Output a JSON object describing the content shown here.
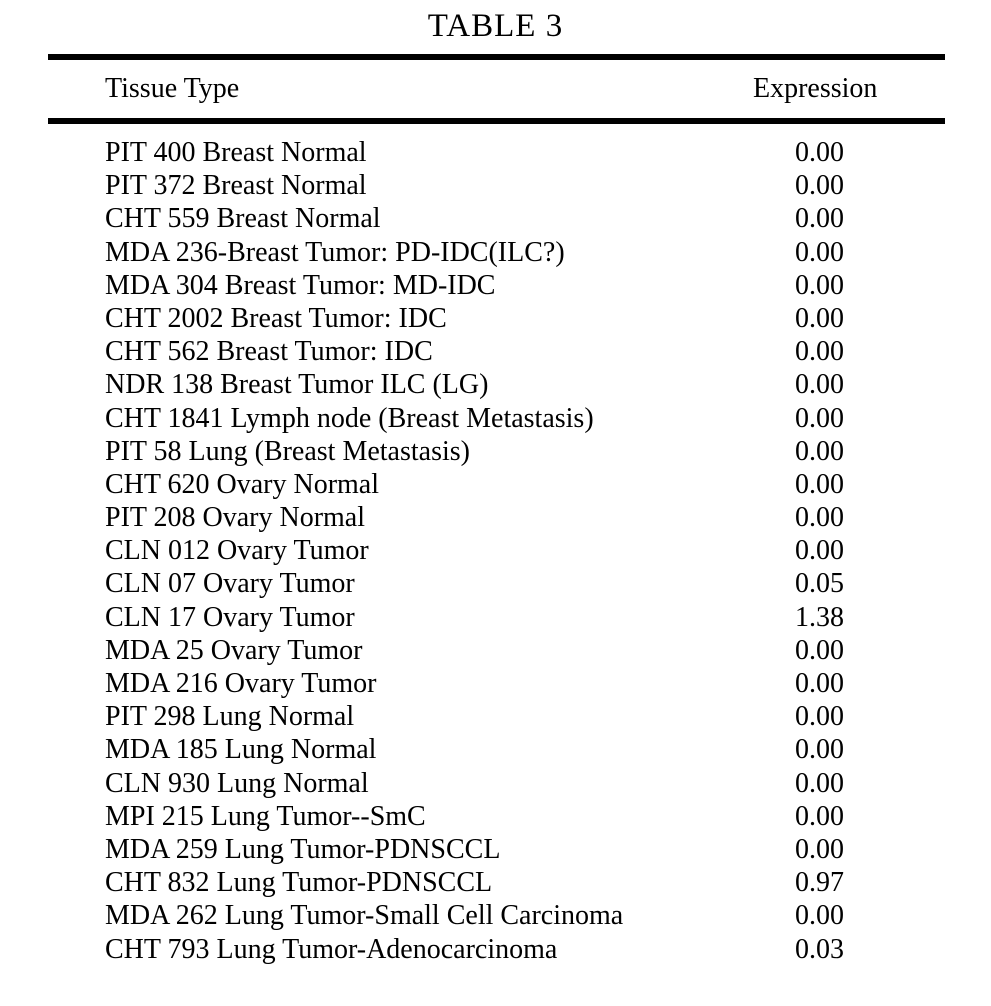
{
  "title": "TABLE 3",
  "table": {
    "columns": [
      "Tissue Type",
      "Expression"
    ],
    "rows": [
      {
        "tissue": "PIT 400 Breast Normal",
        "expression": "0.00"
      },
      {
        "tissue": "PIT 372 Breast Normal",
        "expression": "0.00"
      },
      {
        "tissue": "CHT 559 Breast Normal",
        "expression": "0.00"
      },
      {
        "tissue": "MDA 236-Breast Tumor: PD-IDC(ILC?)",
        "expression": "0.00"
      },
      {
        "tissue": "MDA 304 Breast Tumor: MD-IDC",
        "expression": "0.00"
      },
      {
        "tissue": "CHT 2002 Breast Tumor: IDC",
        "expression": "0.00"
      },
      {
        "tissue": "CHT 562 Breast Tumor: IDC",
        "expression": "0.00"
      },
      {
        "tissue": "NDR 138 Breast Tumor ILC (LG)",
        "expression": "0.00"
      },
      {
        "tissue": "CHT 1841 Lymph node (Breast Metastasis)",
        "expression": "0.00"
      },
      {
        "tissue": "PIT 58 Lung (Breast Metastasis)",
        "expression": "0.00"
      },
      {
        "tissue": "CHT 620 Ovary Normal",
        "expression": "0.00"
      },
      {
        "tissue": "PIT 208 Ovary Normal",
        "expression": "0.00"
      },
      {
        "tissue": "CLN 012 Ovary Tumor",
        "expression": "0.00"
      },
      {
        "tissue": "CLN 07 Ovary Tumor",
        "expression": "0.05"
      },
      {
        "tissue": "CLN 17 Ovary Tumor",
        "expression": "1.38"
      },
      {
        "tissue": "MDA 25 Ovary Tumor",
        "expression": "0.00"
      },
      {
        "tissue": "MDA 216 Ovary Tumor",
        "expression": "0.00"
      },
      {
        "tissue": "PIT 298 Lung Normal",
        "expression": "0.00"
      },
      {
        "tissue": "MDA 185 Lung Normal",
        "expression": "0.00"
      },
      {
        "tissue": "CLN 930 Lung Normal",
        "expression": "0.00"
      },
      {
        "tissue": "MPI 215 Lung Tumor--SmC",
        "expression": "0.00"
      },
      {
        "tissue": "MDA 259 Lung Tumor-PDNSCCL",
        "expression": "0.00"
      },
      {
        "tissue": "CHT 832 Lung Tumor-PDNSCCL",
        "expression": "0.97"
      },
      {
        "tissue": "MDA 262 Lung Tumor-Small Cell Carcinoma",
        "expression": "0.00"
      },
      {
        "tissue": "CHT 793 Lung Tumor-Adenocarcinoma",
        "expression": "0.03"
      }
    ]
  }
}
